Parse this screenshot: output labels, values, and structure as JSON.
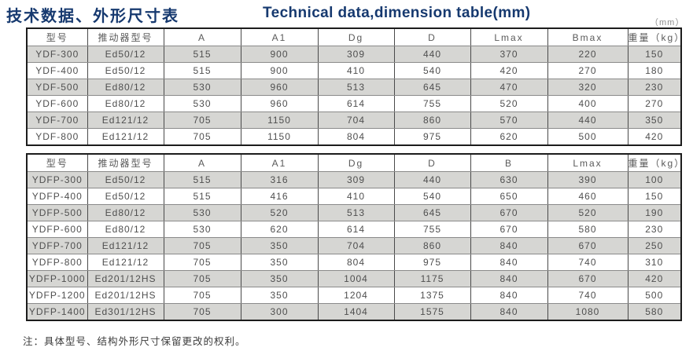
{
  "header": {
    "title_zh": "技术数据、外形尺寸表",
    "title_en": "Technical data,dimension table(mm)",
    "unit_label": "（mm）"
  },
  "colors": {
    "title_navy": "#16396f",
    "row_gray": "#d6d6d3",
    "row_white": "#ffffff",
    "border_dark": "#1c1c1c",
    "cell_text": "#4f4f4f"
  },
  "table1": {
    "headers": [
      "型号",
      "推动器型号",
      "A",
      "A1",
      "Dg",
      "D",
      "Lmax",
      "Bmax",
      "重量（kg）"
    ],
    "rows": [
      [
        "YDF-300",
        "Ed50/12",
        "515",
        "900",
        "309",
        "440",
        "370",
        "220",
        "150"
      ],
      [
        "YDF-400",
        "Ed50/12",
        "515",
        "900",
        "410",
        "540",
        "420",
        "270",
        "180"
      ],
      [
        "YDF-500",
        "Ed80/12",
        "530",
        "960",
        "513",
        "645",
        "470",
        "320",
        "230"
      ],
      [
        "YDF-600",
        "Ed80/12",
        "530",
        "960",
        "614",
        "755",
        "520",
        "400",
        "270"
      ],
      [
        "YDF-700",
        "Ed121/12",
        "705",
        "1150",
        "704",
        "860",
        "570",
        "440",
        "350"
      ],
      [
        "YDF-800",
        "Ed121/12",
        "705",
        "1150",
        "804",
        "975",
        "620",
        "500",
        "420"
      ]
    ]
  },
  "table2": {
    "headers": [
      "型号",
      "推动器型号",
      "A",
      "A1",
      "Dg",
      "D",
      "B",
      "Lmax",
      "重量（kg）"
    ],
    "rows": [
      [
        "YDFP-300",
        "Ed50/12",
        "515",
        "316",
        "309",
        "440",
        "630",
        "390",
        "100"
      ],
      [
        "YDFP-400",
        "Ed50/12",
        "515",
        "416",
        "410",
        "540",
        "650",
        "460",
        "150"
      ],
      [
        "YDFP-500",
        "Ed80/12",
        "530",
        "520",
        "513",
        "645",
        "670",
        "520",
        "190"
      ],
      [
        "YDFP-600",
        "Ed80/12",
        "530",
        "620",
        "614",
        "755",
        "670",
        "580",
        "230"
      ],
      [
        "YDFP-700",
        "Ed121/12",
        "705",
        "350",
        "704",
        "860",
        "840",
        "670",
        "250"
      ],
      [
        "YDFP-800",
        "Ed121/12",
        "705",
        "350",
        "804",
        "975",
        "840",
        "740",
        "310"
      ],
      [
        "YDFP-1000",
        "Ed201/12HS",
        "705",
        "350",
        "1004",
        "1175",
        "840",
        "670",
        "420"
      ],
      [
        "YDFP-1200",
        "Ed201/12HS",
        "705",
        "350",
        "1204",
        "1375",
        "840",
        "740",
        "500"
      ],
      [
        "YDFP-1400",
        "Ed301/12HS",
        "705",
        "300",
        "1404",
        "1575",
        "840",
        "1080",
        "580"
      ]
    ]
  },
  "footer": {
    "note": "注：具体型号、结构外形尺寸保留更改的权利。"
  }
}
